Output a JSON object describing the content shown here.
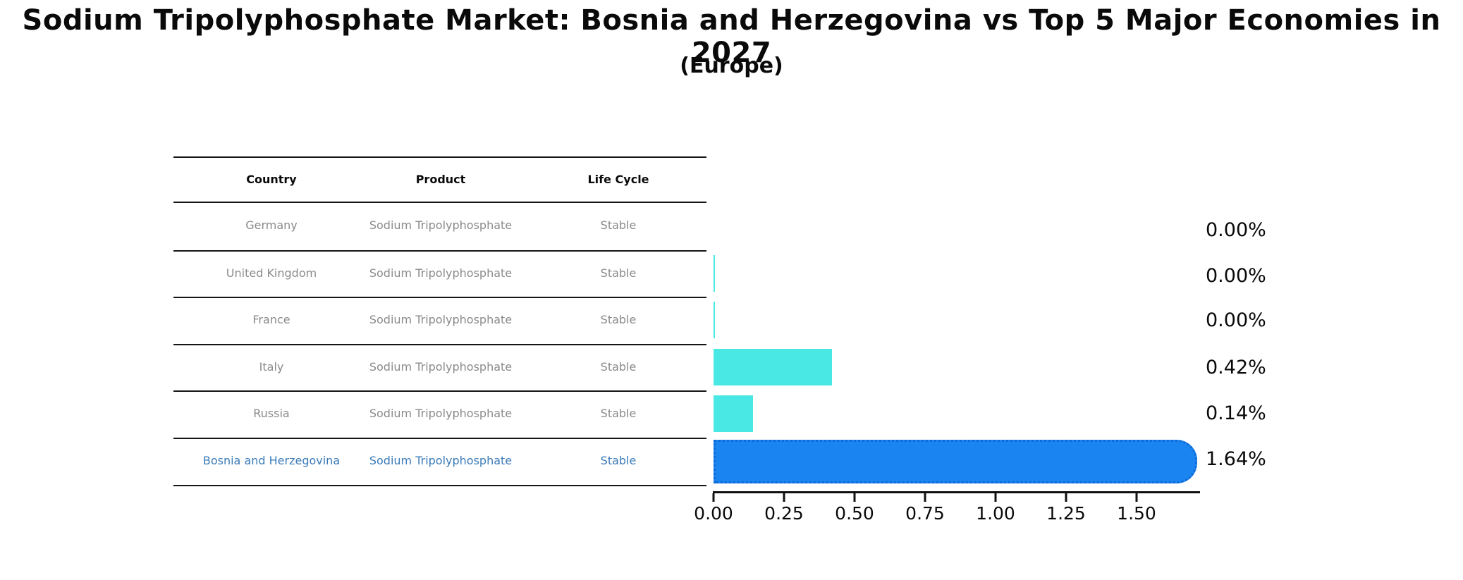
{
  "title": "Sodium Tripolyphosphate Market: Bosnia and Herzegovina vs Top 5 Major Economies in 2027",
  "subtitle": "(Europe)",
  "table": {
    "headers": {
      "country": "Country",
      "product": "Product",
      "life_cycle": "Life Cycle"
    },
    "rows": [
      {
        "country": "Germany",
        "product": "Sodium Tripolyphosphate",
        "life_cycle": "Stable"
      },
      {
        "country": "United Kingdom",
        "product": "Sodium Tripolyphosphate",
        "life_cycle": "Stable"
      },
      {
        "country": "France",
        "product": "Sodium Tripolyphosphate",
        "life_cycle": "Stable"
      },
      {
        "country": "Italy",
        "product": "Sodium Tripolyphosphate",
        "life_cycle": "Stable"
      },
      {
        "country": "Russia",
        "product": "Sodium Tripolyphosphate",
        "life_cycle": "Stable"
      },
      {
        "country": "Bosnia and Herzegovina",
        "product": "Sodium Tripolyphosphate",
        "life_cycle": "Stable"
      }
    ],
    "highlight_row_index": 5
  },
  "chart_data": {
    "type": "bar",
    "orientation": "horizontal",
    "title": "Sodium Tripolyphosphate Market: Bosnia and Herzegovina vs Top 5 Major Economies in 2027 (Europe)",
    "categories": [
      "Germany",
      "United Kingdom",
      "France",
      "Italy",
      "Russia",
      "Bosnia and Herzegovina"
    ],
    "values": [
      0.0,
      0.005,
      0.005,
      0.42,
      0.14,
      1.64
    ],
    "value_labels": [
      "0.00%",
      "0.00%",
      "0.00%",
      "0.42%",
      "0.14%",
      "1.64%"
    ],
    "x_tick_labels": [
      "0.00",
      "0.25",
      "0.50",
      "0.75",
      "1.00",
      "1.25",
      "1.50"
    ],
    "xlim": [
      0,
      1.72
    ],
    "unit": "%",
    "grid": false,
    "legend": "none",
    "highlight_index": 5,
    "bar_color_default": "#4AE8E4",
    "bar_color_highlight": "#1A84F0",
    "highlight_border_color": "#0E6AD6"
  },
  "colors": {
    "background": "#FFFFFF",
    "table_text": "#8A8A8A",
    "header_text": "#0A0A0A",
    "highlight_text": "#3B7BB8",
    "divider": "#151515",
    "axis": "#111111"
  }
}
